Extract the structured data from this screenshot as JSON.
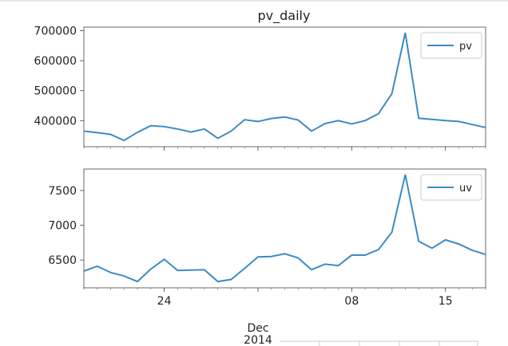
{
  "chart_data": {
    "type": "line",
    "title": "pv_daily",
    "x": [
      "2014-11-18",
      "2014-11-19",
      "2014-11-20",
      "2014-11-21",
      "2014-11-22",
      "2014-11-23",
      "2014-11-24",
      "2014-11-25",
      "2014-11-26",
      "2014-11-27",
      "2014-11-28",
      "2014-11-29",
      "2014-11-30",
      "2014-12-01",
      "2014-12-02",
      "2014-12-03",
      "2014-12-04",
      "2014-12-05",
      "2014-12-06",
      "2014-12-07",
      "2014-12-08",
      "2014-12-09",
      "2014-12-10",
      "2014-12-11",
      "2014-12-12",
      "2014-12-13",
      "2014-12-14",
      "2014-12-15",
      "2014-12-16",
      "2014-12-17",
      "2014-12-18"
    ],
    "xticks_minor": [
      "24",
      "08",
      "15"
    ],
    "xticks_major": [
      "Dec\n2014"
    ],
    "xlim": [
      "2014-11-18",
      "2014-12-18"
    ],
    "panels": [
      {
        "series": [
          {
            "name": "pv",
            "color": "#3d8bc4",
            "values": [
              365000,
              360000,
              354000,
              334000,
              361000,
              383000,
              380000,
              372000,
              362000,
              372000,
              341000,
              365000,
              403000,
              397000,
              407000,
              412000,
              402000,
              365000,
              390000,
              400000,
              389000,
              400000,
              423000,
              490000,
              693000,
              408000,
              404000,
              400000,
              397000,
              387000,
              377000
            ]
          }
        ],
        "ylim": [
          313000,
          712000
        ],
        "yticks": [
          "400000",
          "500000",
          "600000",
          "700000"
        ],
        "ytick_values": [
          400000,
          500000,
          600000,
          700000
        ],
        "legend_loc": "upper right"
      },
      {
        "series": [
          {
            "name": "uv",
            "color": "#3d8bc4",
            "values": [
              6340,
              6410,
              6320,
              6270,
              6190,
              6370,
              6510,
              6350,
              6355,
              6360,
              6190,
              6220,
              6380,
              6545,
              6550,
              6590,
              6530,
              6360,
              6440,
              6420,
              6570,
              6570,
              6650,
              6900,
              7730,
              6770,
              6670,
              6790,
              6730,
              6640,
              6580
            ]
          }
        ],
        "ylim": [
          6100,
          7810
        ],
        "yticks": [
          "6500",
          "7000",
          "7500"
        ],
        "ytick_values": [
          6500,
          7000,
          7500
        ],
        "legend_loc": "upper right"
      }
    ]
  }
}
